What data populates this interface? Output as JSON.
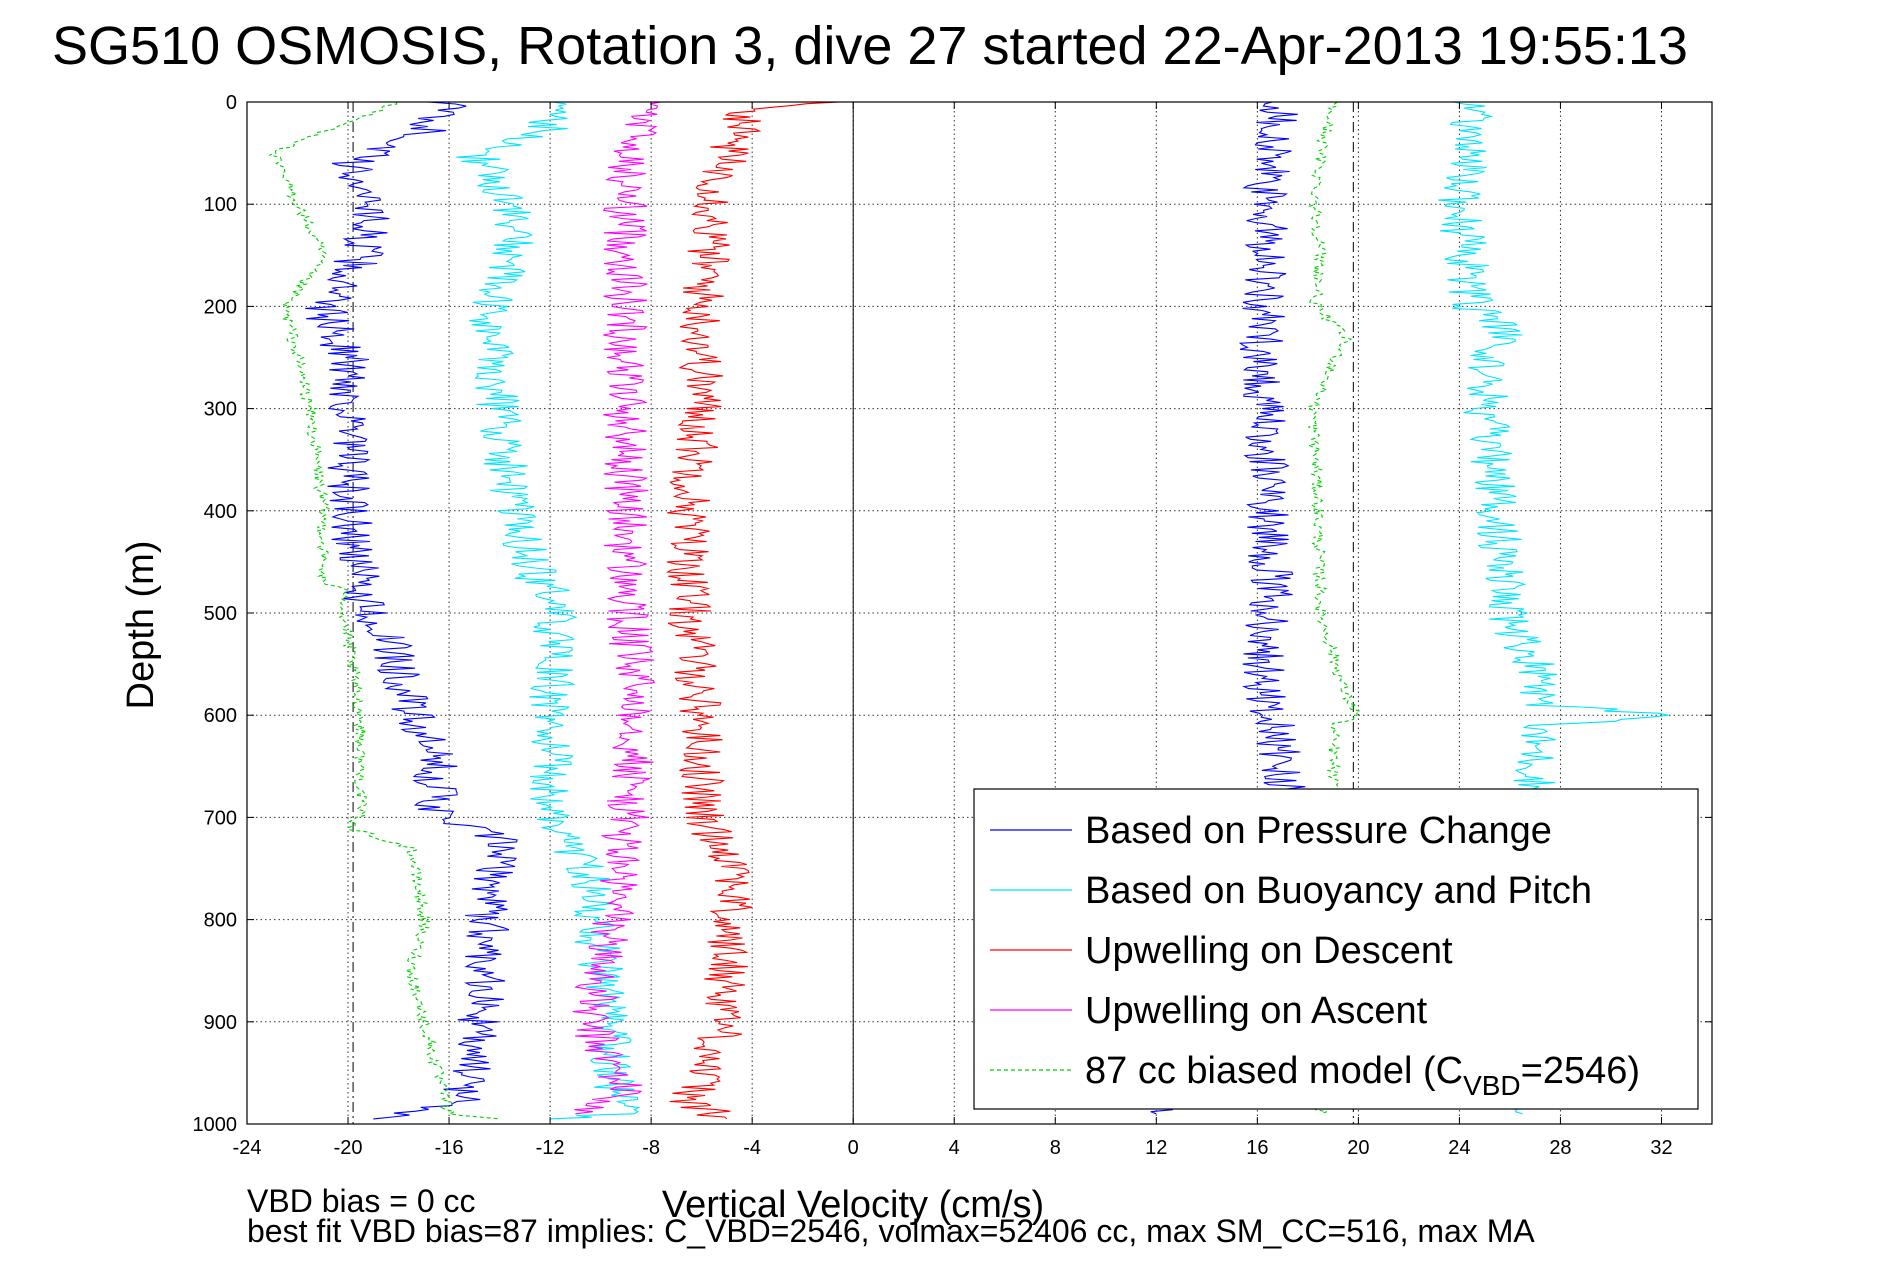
{
  "chart_data": {
    "type": "line",
    "title": "SG510 OSMOSIS, Rotation 3, dive 27 started 22-Apr-2013 19:55:13",
    "xlabel": "Vertical Velocity (cm/s)",
    "ylabel": "Depth (m)",
    "xlim": [
      -24,
      34
    ],
    "ylim": [
      0,
      1000
    ],
    "y_reversed": true,
    "grid": true,
    "legend_position": "bottom-right",
    "xticks": [
      "-24",
      "-20",
      "-16",
      "-12",
      "-8",
      "-4",
      "0",
      "4",
      "8",
      "12",
      "16",
      "20",
      "24",
      "28",
      "32"
    ],
    "yticks": [
      "0",
      "100",
      "200",
      "300",
      "400",
      "500",
      "600",
      "700",
      "800",
      "900",
      "1000"
    ],
    "reference_lines": [
      {
        "orientation": "vertical",
        "x": 0,
        "style": "solid"
      },
      {
        "orientation": "vertical",
        "x": -19.8,
        "style": "dash-dot"
      },
      {
        "orientation": "vertical",
        "x": 19.8,
        "style": "dash-dot"
      }
    ],
    "series": [
      {
        "name": "Based on Pressure Change",
        "color": "#0000ff",
        "style": "solid",
        "segments": [
          {
            "depth": [
              0,
              30,
              60,
              100,
              150,
              200,
              250,
              300,
              400,
              480,
              550,
              600,
              650,
              700,
              720,
              800,
              860,
              920,
              980,
              995
            ],
            "value": [
              -16,
              -17,
              -20,
              -19,
              -19.5,
              -21,
              -20,
              -20,
              -20,
              -19.5,
              -18,
              -17.5,
              -16.5,
              -16.5,
              -14,
              -14.5,
              -14.5,
              -15,
              -15.5,
              -19
            ]
          },
          {
            "depth": [
              0,
              50,
              100,
              150,
              200,
              250,
              300,
              400,
              500,
              550,
              600,
              650,
              700,
              800,
              900,
              990
            ],
            "value": [
              17,
              16.5,
              16.2,
              16.5,
              16.2,
              16.2,
              16.2,
              16.5,
              16.5,
              16.2,
              16.5,
              17,
              17,
              17,
              17,
              12
            ]
          }
        ]
      },
      {
        "name": "Based on Buoyancy and Pitch",
        "color": "#00e5ff",
        "style": "solid",
        "segments": [
          {
            "depth": [
              0,
              30,
              50,
              100,
              150,
              200,
              300,
              400,
              470,
              480,
              600,
              700,
              750,
              850,
              950,
              990,
              995
            ],
            "value": [
              -12,
              -12,
              -15,
              -13.5,
              -13.5,
              -14.5,
              -14,
              -13.5,
              -12.5,
              -11.8,
              -12,
              -12,
              -10.5,
              -10,
              -9.5,
              -9.2,
              -12
            ]
          },
          {
            "depth": [
              0,
              100,
              200,
              230,
              240,
              300,
              400,
              500,
              570,
              590,
              600,
              610,
              700,
              800,
              900,
              990
            ],
            "value": [
              24.5,
              24,
              24.5,
              26,
              25.2,
              25,
              25.5,
              25.8,
              27.5,
              27,
              33,
              27,
              27,
              27,
              27,
              26.5
            ]
          }
        ]
      },
      {
        "name": "Upwelling on Descent",
        "color": "#ff0000",
        "style": "solid",
        "segments": [
          {
            "depth": [
              0,
              5,
              50,
              100,
              200,
              300,
              400,
              500,
              600,
              700,
              750,
              800,
              900,
              980,
              995
            ],
            "value": [
              0,
              -4,
              -5,
              -5.5,
              -6,
              -6,
              -6.5,
              -6.5,
              -6,
              -6,
              -4.5,
              -5,
              -5,
              -6.5,
              -5
            ]
          }
        ]
      },
      {
        "name": "Upwelling on Ascent",
        "color": "#ff00ff",
        "style": "solid",
        "segments": [
          {
            "depth": [
              0,
              50,
              100,
              200,
              300,
              400,
              500,
              600,
              700,
              800,
              850,
              900,
              970,
              990
            ],
            "value": [
              -8,
              -9,
              -9,
              -9,
              -9,
              -9,
              -9,
              -8.5,
              -9,
              -9.5,
              -10,
              -10.5,
              -9,
              -11
            ]
          }
        ]
      },
      {
        "name": "87 cc biased model (C_VBD=2546)",
        "color": "#00d000",
        "style": "dashed",
        "segments": [
          {
            "depth": [
              0,
              50,
              100,
              150,
              200,
              300,
              400,
              470,
              480,
              500,
              600,
              700,
              710,
              730,
              800,
              850,
              900,
              990,
              995
            ],
            "value": [
              -18,
              -23,
              -22,
              -21,
              -22.5,
              -21.5,
              -21,
              -21,
              -20,
              -20.2,
              -19.5,
              -19.5,
              -20,
              -17.5,
              -17,
              -17.5,
              -17,
              -16,
              -14
            ]
          },
          {
            "depth": [
              0,
              50,
              100,
              150,
              200,
              230,
              300,
              400,
              500,
              580,
              600,
              610,
              700,
              800,
              900,
              990
            ],
            "value": [
              19,
              18.5,
              18.3,
              18.5,
              18.3,
              19.5,
              18.2,
              18.4,
              18.5,
              19.5,
              20,
              19,
              19,
              19,
              19,
              18.5
            ]
          }
        ]
      }
    ],
    "legend": [
      {
        "label": "Based on Pressure Change",
        "color": "#0000ff",
        "style": "solid"
      },
      {
        "label": "Based on Buoyancy and Pitch",
        "color": "#00e5ff",
        "style": "solid"
      },
      {
        "label": "Upwelling on Descent",
        "color": "#ff0000",
        "style": "solid"
      },
      {
        "label": "Upwelling on Ascent",
        "color": "#ff00ff",
        "style": "solid"
      },
      {
        "label_main": "87 cc biased model (C",
        "label_sub": "VBD",
        "label_tail": "=2546)",
        "color": "#00d000",
        "style": "dashed"
      }
    ],
    "annotations": [
      "VBD bias = 0 cc",
      "best fit VBD bias=87 implies: C_VBD=2546, volmax=52406 cc, max SM_CC=516, max MA"
    ]
  }
}
